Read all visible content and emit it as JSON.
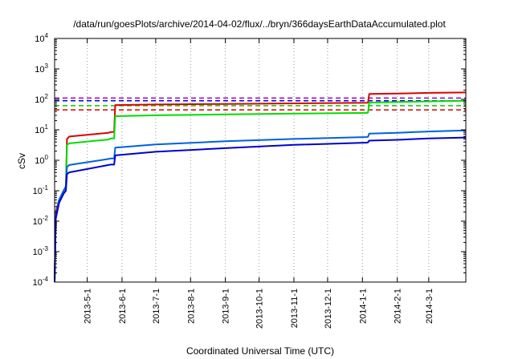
{
  "chart_data": {
    "type": "line",
    "title": "/data/run/goesPlots/archive/2014-04-02/flux/../bryn/366daysEarthDataAccumulated.plot",
    "xlabel": "Coordinated Universal Time (UTC)",
    "ylabel": "cSv",
    "yscale": "log",
    "ylim": [
      0.0001,
      10000
    ],
    "y_ticks": [
      {
        "base": "10",
        "exp": "-4",
        "value": 0.0001
      },
      {
        "base": "10",
        "exp": "-3",
        "value": 0.001
      },
      {
        "base": "10",
        "exp": "-2",
        "value": 0.01
      },
      {
        "base": "10",
        "exp": "-1",
        "value": 0.1
      },
      {
        "base": "10",
        "exp": "0",
        "value": 1
      },
      {
        "base": "10",
        "exp": "1",
        "value": 10
      },
      {
        "base": "10",
        "exp": "2",
        "value": 100
      },
      {
        "base": "10",
        "exp": "3",
        "value": 1000
      },
      {
        "base": "10",
        "exp": "4",
        "value": 10000
      }
    ],
    "xlim": [
      "2013-04-02",
      "2014-04-03"
    ],
    "x_ticks": [
      "2013-5-1",
      "2013-6-1",
      "2013-7-1",
      "2013-8-1",
      "2013-9-1",
      "2013-10-1",
      "2013-11-1",
      "2013-12-1",
      "2014-1-1",
      "2014-2-1",
      "2014-3-1"
    ],
    "x_tick_dates": [
      "2013-05-01",
      "2013-06-01",
      "2013-07-01",
      "2013-08-01",
      "2013-09-01",
      "2013-10-01",
      "2013-11-01",
      "2013-12-01",
      "2014-01-01",
      "2014-02-01",
      "2014-03-01"
    ],
    "grid": "vertical dotted",
    "series": [
      {
        "color": "#dd0000",
        "style": "solid",
        "points": [
          [
            "2013-04-02",
            0.0001
          ],
          [
            "2013-04-03",
            0.02
          ],
          [
            "2013-04-06",
            0.05
          ],
          [
            "2013-04-10",
            0.1
          ],
          [
            "2013-04-12",
            0.13
          ],
          [
            "2013-04-13",
            5.0
          ],
          [
            "2013-04-15",
            6.0
          ],
          [
            "2013-05-20",
            8.0
          ],
          [
            "2013-05-22",
            8.5
          ],
          [
            "2013-05-25",
            8.5
          ],
          [
            "2013-05-26",
            65
          ],
          [
            "2013-07-01",
            68
          ],
          [
            "2013-09-01",
            71
          ],
          [
            "2013-11-01",
            74
          ],
          [
            "2014-01-05",
            77
          ],
          [
            "2014-01-06",
            80
          ],
          [
            "2014-01-07",
            150
          ],
          [
            "2014-02-01",
            155
          ],
          [
            "2014-03-01",
            163
          ],
          [
            "2014-04-03",
            168
          ]
        ]
      },
      {
        "color": "#00dd00",
        "style": "solid",
        "points": [
          [
            "2013-04-02",
            0.0001
          ],
          [
            "2013-04-03",
            0.015
          ],
          [
            "2013-04-06",
            0.05
          ],
          [
            "2013-04-10",
            0.1
          ],
          [
            "2013-04-12",
            0.13
          ],
          [
            "2013-04-13",
            3.2
          ],
          [
            "2013-04-15",
            3.6
          ],
          [
            "2013-05-20",
            4.8
          ],
          [
            "2013-05-22",
            5.2
          ],
          [
            "2013-05-25",
            5.2
          ],
          [
            "2013-05-26",
            28
          ],
          [
            "2013-07-01",
            30
          ],
          [
            "2013-09-01",
            32
          ],
          [
            "2013-11-01",
            34
          ],
          [
            "2014-01-05",
            36
          ],
          [
            "2014-01-06",
            37
          ],
          [
            "2014-01-07",
            78
          ],
          [
            "2014-02-01",
            82
          ],
          [
            "2014-03-01",
            86
          ],
          [
            "2014-04-03",
            90
          ]
        ]
      },
      {
        "color": "#0060e0",
        "style": "solid",
        "points": [
          [
            "2013-04-02",
            0.0001
          ],
          [
            "2013-04-03",
            0.015
          ],
          [
            "2013-04-06",
            0.05
          ],
          [
            "2013-04-10",
            0.1
          ],
          [
            "2013-04-12",
            0.14
          ],
          [
            "2013-04-13",
            0.6
          ],
          [
            "2013-04-15",
            0.7
          ],
          [
            "2013-05-20",
            1.1
          ],
          [
            "2013-05-22",
            1.15
          ],
          [
            "2013-05-25",
            1.15
          ],
          [
            "2013-05-26",
            2.6
          ],
          [
            "2013-07-01",
            3.3
          ],
          [
            "2013-09-01",
            4.2
          ],
          [
            "2013-11-01",
            5.0
          ],
          [
            "2014-01-05",
            5.8
          ],
          [
            "2014-01-06",
            5.9
          ],
          [
            "2014-01-07",
            7.5
          ],
          [
            "2014-02-01",
            8.0
          ],
          [
            "2014-03-01",
            8.8
          ],
          [
            "2014-04-03",
            9.5
          ]
        ]
      },
      {
        "color": "#0000cc",
        "style": "solid",
        "points": [
          [
            "2013-04-02",
            0.0001
          ],
          [
            "2013-04-03",
            0.012
          ],
          [
            "2013-04-06",
            0.04
          ],
          [
            "2013-04-10",
            0.08
          ],
          [
            "2013-04-12",
            0.1
          ],
          [
            "2013-04-13",
            0.35
          ],
          [
            "2013-04-15",
            0.4
          ],
          [
            "2013-05-20",
            0.7
          ],
          [
            "2013-05-22",
            0.72
          ],
          [
            "2013-05-25",
            0.72
          ],
          [
            "2013-05-26",
            1.45
          ],
          [
            "2013-07-01",
            1.9
          ],
          [
            "2013-09-01",
            2.5
          ],
          [
            "2013-11-01",
            3.2
          ],
          [
            "2014-01-05",
            3.8
          ],
          [
            "2014-01-06",
            3.9
          ],
          [
            "2014-01-07",
            4.4
          ],
          [
            "2014-02-01",
            4.7
          ],
          [
            "2014-03-01",
            5.2
          ],
          [
            "2014-04-03",
            5.6
          ]
        ]
      }
    ],
    "reference_lines": [
      {
        "y": 110,
        "color": "#9900cc",
        "style": "dashed"
      },
      {
        "y": 90,
        "color": "#0000dd",
        "style": "dashed"
      },
      {
        "y": 62,
        "color": "#00cc00",
        "style": "dashed"
      },
      {
        "y": 45,
        "color": "#dd0000",
        "style": "dashed"
      }
    ]
  }
}
